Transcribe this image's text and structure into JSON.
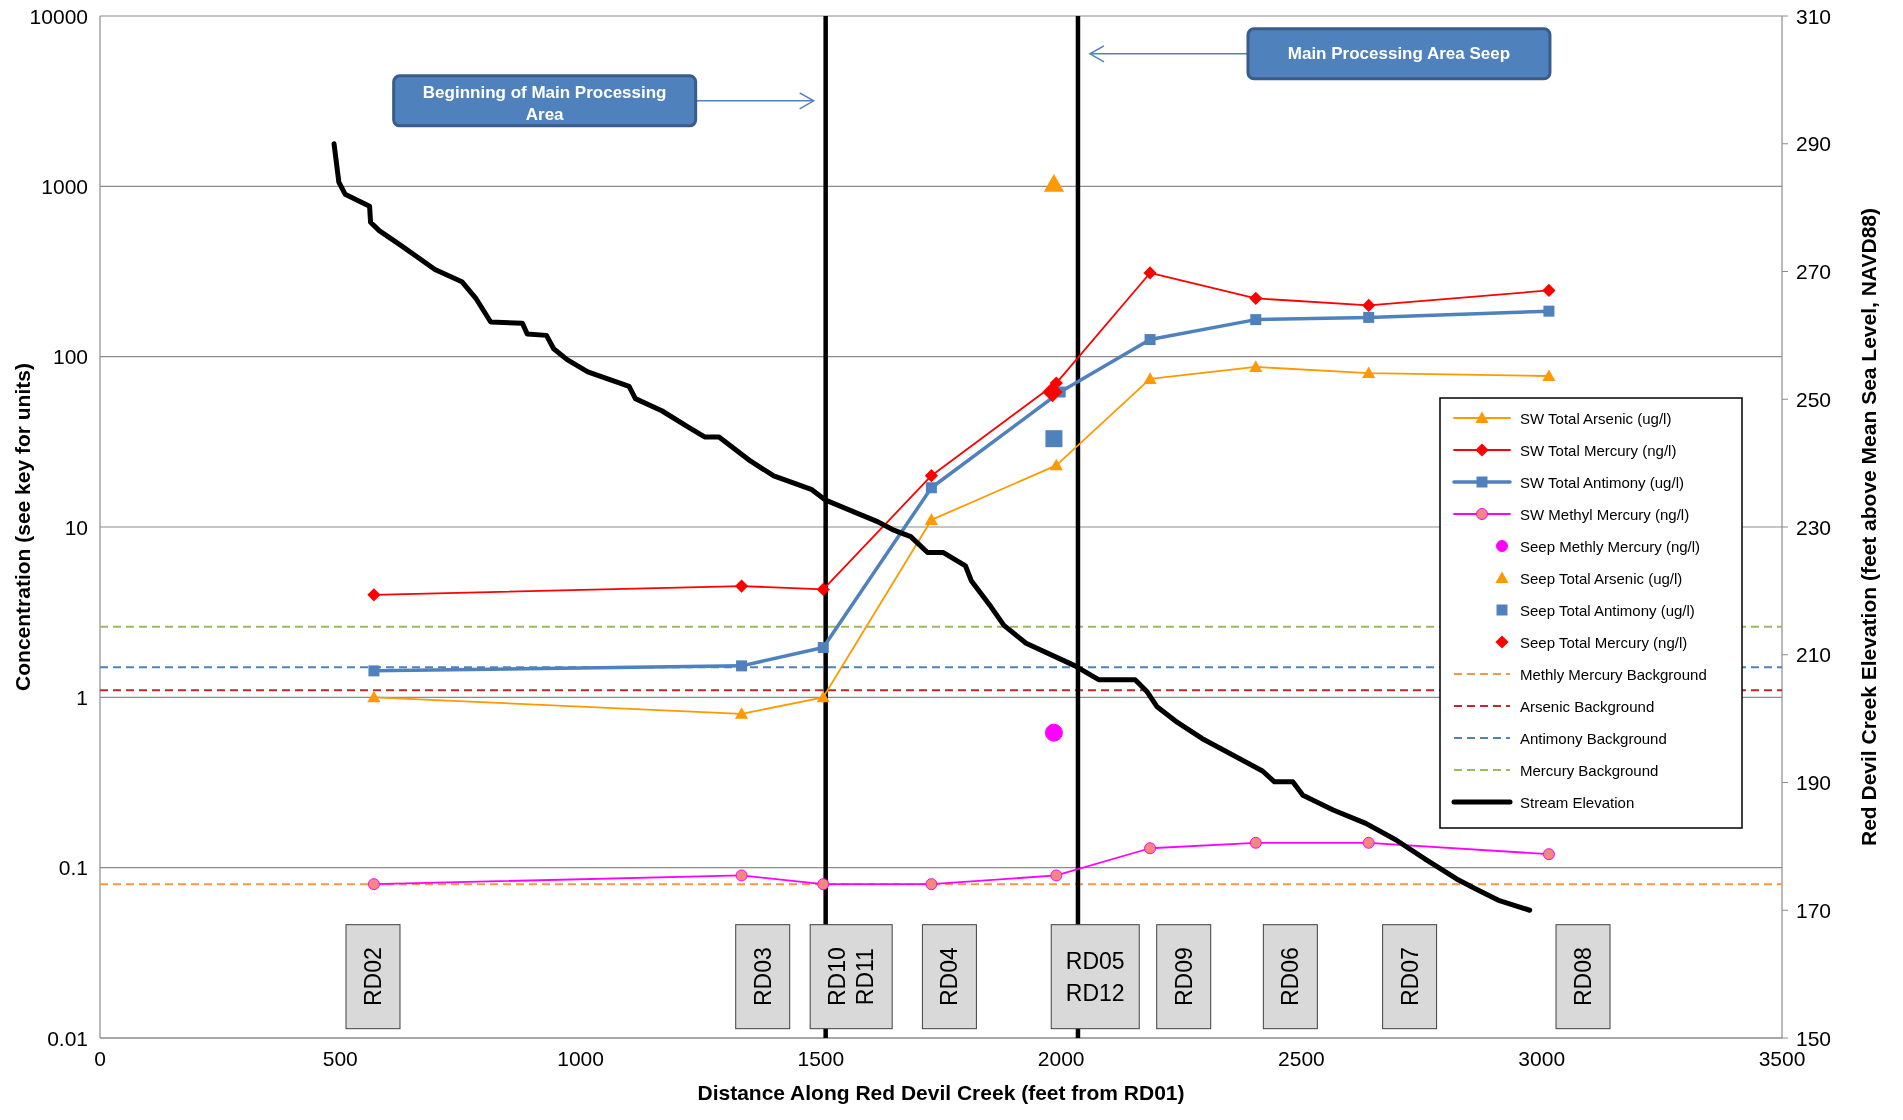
{
  "chart_data": {
    "type": "line",
    "xlabel": "Distance Along Red Devil Creek (feet from RD01)",
    "ylabel": "Concentration (see key for units)",
    "y2label": "Red Devil Creek Elevation (feet above Mean Sea Level, NAVD88)",
    "xlim": [
      0,
      3500
    ],
    "xticks": [
      0,
      500,
      1000,
      1500,
      2000,
      2500,
      3000,
      3500
    ],
    "ylim": [
      0.01,
      10000
    ],
    "yticks": [
      0.01,
      0.1,
      1,
      10,
      100,
      1000,
      10000
    ],
    "log": "y",
    "y2lim": [
      150,
      310
    ],
    "y2ticks": [
      150,
      170,
      190,
      210,
      230,
      250,
      270,
      290,
      310
    ],
    "grid": "y",
    "legend": "right",
    "line_style": "solid",
    "series": [
      {
        "name": "SW Total Arsenic (ug/l)",
        "marker": "triangle",
        "color": "#ff9900",
        "x": [
          570,
          1335,
          1505,
          1730,
          1990,
          2185,
          2405,
          2640,
          3015
        ],
        "values": [
          1.0,
          0.8,
          1.0,
          11,
          23,
          74,
          87,
          80,
          77
        ]
      },
      {
        "name": "SW Total Mercury (ng/l)",
        "marker": "diamond",
        "color": "#ff0000",
        "x": [
          570,
          1335,
          1505,
          1730,
          1990,
          2185,
          2405,
          2640,
          3015
        ],
        "values": [
          4.0,
          4.5,
          4.3,
          20,
          70,
          310,
          220,
          200,
          245
        ]
      },
      {
        "name": "SW Total Antimony (ug/l)",
        "marker": "square",
        "color": "#4f81bd",
        "x": [
          570,
          1335,
          1505,
          1730,
          1998,
          2185,
          2405,
          2640,
          3015
        ],
        "values": [
          1.43,
          1.53,
          1.96,
          17,
          62,
          126,
          165,
          170,
          185
        ]
      },
      {
        "name": "SW Methyl Mercury (ng/l)",
        "marker": "circle",
        "color": "#ff00ff",
        "x": [
          570,
          1335,
          1505,
          1730,
          1990,
          2185,
          2405,
          2640,
          3015
        ],
        "values": [
          0.08,
          0.09,
          0.08,
          0.08,
          0.09,
          0.13,
          0.14,
          0.14,
          0.12
        ]
      },
      {
        "name": "Seep Methly Mercury (ng/l)",
        "type": "scatter",
        "marker": "circle",
        "color": "#ff00ff",
        "x": [
          1985
        ],
        "values": [
          0.62
        ]
      },
      {
        "name": "Seep Total Arsenic (ug/l)",
        "type": "scatter",
        "marker": "triangle",
        "color": "#ff9900",
        "x": [
          1985
        ],
        "values": [
          1030
        ]
      },
      {
        "name": "Seep Total Antimony (ug/l)",
        "type": "scatter",
        "marker": "square",
        "color": "#4f81bd",
        "x": [
          1985
        ],
        "values": [
          33
        ]
      },
      {
        "name": "Seep Total Mercury (ng/l)",
        "type": "scatter",
        "marker": "diamond",
        "color": "#ff0000",
        "x": [
          1982
        ],
        "values": [
          62
        ]
      },
      {
        "name": "Stream Elevation",
        "marker": "none",
        "axis": "y2",
        "color": "#000000",
        "x": [
          487,
          497,
          510,
          561,
          563,
          581,
          626,
          697,
          753,
          783,
          813,
          879,
          889,
          929,
          944,
          972,
          1015,
          1101,
          1114,
          1169,
          1225,
          1258,
          1288,
          1354,
          1402,
          1480,
          1510,
          1619,
          1649,
          1687,
          1722,
          1755,
          1801,
          1813,
          1854,
          1881,
          1927,
          2028,
          2078,
          2154,
          2179,
          2199,
          2242,
          2293,
          2419,
          2444,
          2482,
          2503,
          2566,
          2634,
          2697,
          2760,
          2823,
          2861,
          2912,
          2975
        ],
        "values": [
          290.0,
          284.0,
          282.1,
          280.2,
          277.7,
          276.4,
          274.1,
          270.3,
          268.4,
          265.7,
          262.1,
          261.9,
          260.2,
          260.0,
          257.9,
          256.2,
          254.3,
          252.0,
          250.1,
          248.2,
          245.6,
          244.1,
          244.1,
          240.3,
          238.0,
          235.9,
          234.2,
          230.8,
          229.6,
          228.5,
          226.0,
          226.0,
          223.9,
          221.6,
          217.5,
          214.6,
          211.8,
          208.3,
          206.1,
          206.1,
          204.2,
          201.9,
          199.4,
          196.9,
          191.8,
          190.1,
          190.1,
          188.0,
          185.7,
          183.6,
          181.0,
          177.9,
          174.9,
          173.4,
          171.5,
          170.0
        ]
      }
    ],
    "ref_lines": [
      {
        "axis": "y",
        "value": 0.08,
        "label": "Methly Mercury Background",
        "color": "#f79646",
        "line_style": "dashed"
      },
      {
        "axis": "y",
        "value": 1.1,
        "label": "Arsenic Background",
        "color": "#c0282d",
        "line_style": "dashed"
      },
      {
        "axis": "y",
        "value": 1.5,
        "label": "Antimony Background",
        "color": "#4f81bd",
        "line_style": "dashed"
      },
      {
        "axis": "y",
        "value": 2.6,
        "label": "Mercury Background",
        "color": "#9bbb59",
        "line_style": "dashed"
      },
      {
        "axis": "x",
        "value": 1510,
        "color": "#000000",
        "line_style": "solid"
      },
      {
        "axis": "x",
        "value": 2035,
        "color": "#000000",
        "line_style": "solid"
      }
    ],
    "annotations": [
      "Beginning of Main Processing Area",
      "Main Processing Area Seep",
      "RD02",
      "RD03",
      "RD10\nRD11",
      "RD04",
      "RD05\nRD12",
      "RD09",
      "RD06",
      "RD07",
      "RD08"
    ]
  }
}
